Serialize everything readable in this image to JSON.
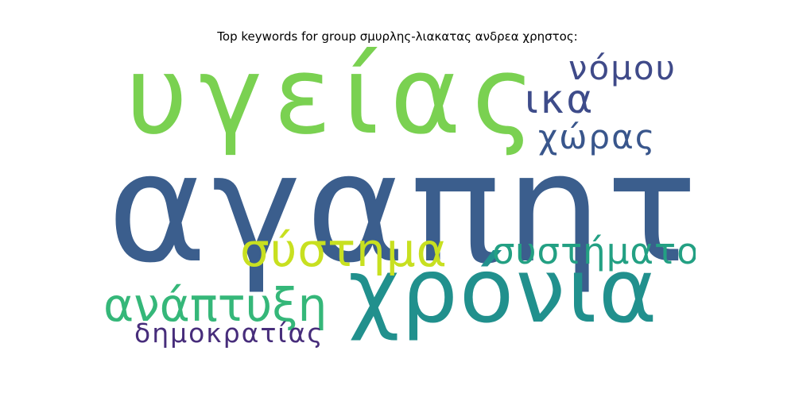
{
  "title": "Top keywords for group σμυρλης-λιακατας ανδρεα χρηστος:",
  "words": [
    {
      "id": "agapitoi",
      "text": "αγαπητοί",
      "color": "#3b5e8d"
    },
    {
      "id": "ygeias",
      "text": "υγείας",
      "color": "#7ad151"
    },
    {
      "id": "chronia",
      "text": "χρόνια",
      "color": "#21908d"
    },
    {
      "id": "systima",
      "text": "σύστημα",
      "color": "#c8e020"
    },
    {
      "id": "anaptyxi",
      "text": "ανάπτυξη",
      "color": "#35b779"
    },
    {
      "id": "systimatos",
      "text": "συστήματος",
      "color": "#23a083"
    },
    {
      "id": "ika",
      "text": "ικα",
      "color": "#3e4c8a"
    },
    {
      "id": "nomou",
      "text": "νόμου",
      "color": "#3f4a89"
    },
    {
      "id": "choras",
      "text": "χώρας",
      "color": "#39568c"
    },
    {
      "id": "dimokratias",
      "text": "δημοκρατίας",
      "color": "#472d7b"
    }
  ]
}
